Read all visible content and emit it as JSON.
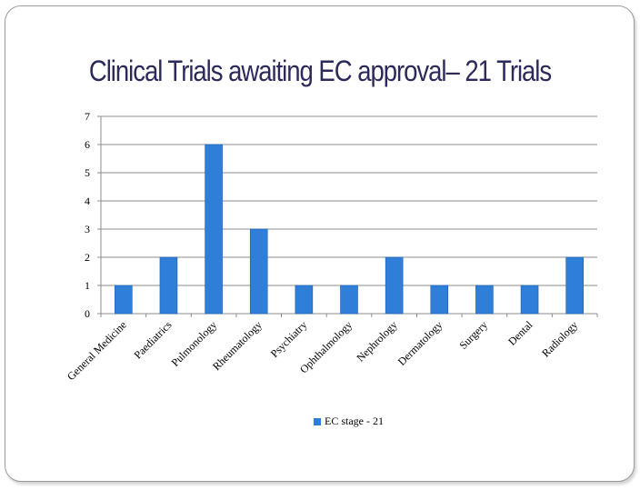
{
  "slide": {
    "title": "Clinical Trials awaiting EC approval– 21 Trials"
  },
  "colors": {
    "bar": "#2f7ed8",
    "bar_edge": "#1d5fb0",
    "grid": "#8c8c8c",
    "title": "#2b2a5a"
  },
  "chart_data": {
    "type": "bar",
    "categories": [
      "General Medicine",
      "Paediatrics",
      "Pulmonology",
      "Rheumatology",
      "Psychiatry",
      "Ophthalmology",
      "Nephrology",
      "Dermatology",
      "Surgery",
      "Dental",
      "Radiology"
    ],
    "series": [
      {
        "name": "EC stage - 21",
        "values": [
          1,
          2,
          6,
          3,
          1,
          1,
          2,
          1,
          1,
          1,
          2
        ]
      }
    ],
    "yticks": [
      0,
      1,
      2,
      3,
      4,
      5,
      6,
      7
    ],
    "ylim": [
      0,
      7
    ],
    "grid": true,
    "legend_position": "bottom",
    "title": "",
    "xlabel": "",
    "ylabel": ""
  }
}
